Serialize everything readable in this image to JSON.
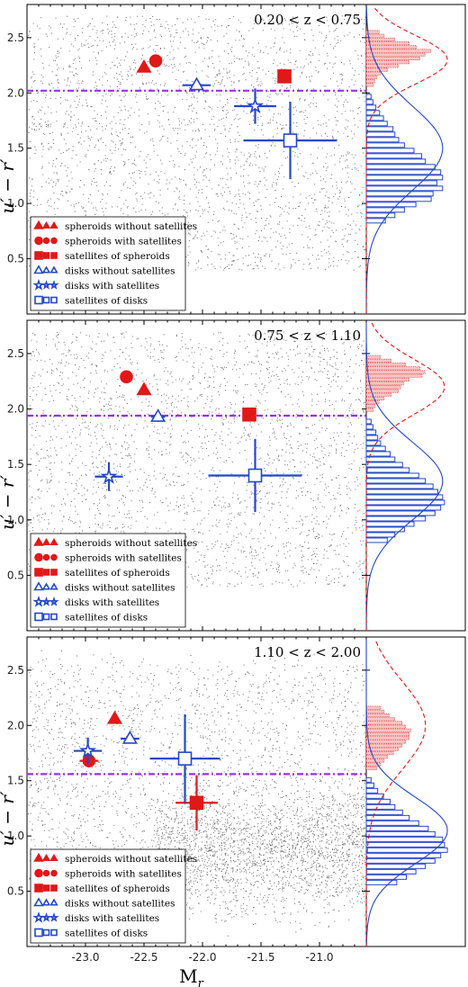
{
  "colors": {
    "red": "#e01818",
    "blue": "#2448c8",
    "threshold": "#9a2fe0",
    "scatter": "#6e6e6e"
  },
  "chart_data": [
    {
      "type": "scatter",
      "zlabel": "0.20 < z < 0.75",
      "ylabel": "u′ − r′",
      "xlim": [
        -23.5,
        -20.6
      ],
      "ylim": [
        0.0,
        2.8
      ],
      "yticks": [
        "0.5",
        "1.0",
        "1.5",
        "2.0",
        "2.5"
      ],
      "threshold": 2.02,
      "series": [
        {
          "name": "spheroids without satellites",
          "marker": "triangle",
          "color": "red",
          "x": -22.5,
          "y": 2.23,
          "xerr": 0,
          "yerr": 0
        },
        {
          "name": "spheroids with satellites",
          "marker": "circle",
          "color": "red",
          "x": -22.4,
          "y": 2.29,
          "xerr": 0,
          "yerr": 0
        },
        {
          "name": "satellites of spheroids",
          "marker": "square",
          "color": "red",
          "x": -21.3,
          "y": 2.15,
          "xerr": 0.05,
          "yerr": 0.05
        },
        {
          "name": "disks without satellites",
          "marker": "triangle-open",
          "color": "blue",
          "x": -22.05,
          "y": 2.07,
          "xerr": 0.12,
          "yerr": 0.04
        },
        {
          "name": "disks with satellites",
          "marker": "star-open",
          "color": "blue",
          "x": -21.55,
          "y": 1.88,
          "xerr": 0.18,
          "yerr": 0.16
        },
        {
          "name": "satellites of disks",
          "marker": "square-open",
          "color": "blue",
          "x": -21.25,
          "y": 1.57,
          "xerr": 0.4,
          "yerr": 0.35
        }
      ],
      "hist_red": [
        0.1,
        0.12,
        0.15,
        0.2,
        0.3,
        0.45,
        0.6,
        0.75,
        0.82,
        0.9,
        0.7,
        0.6,
        0.4,
        0.25,
        0.18
      ],
      "hist_blue": [
        0.05,
        0.07,
        0.1,
        0.14,
        0.18,
        0.22,
        0.28,
        0.3,
        0.34,
        0.4,
        0.5,
        0.58,
        0.62,
        0.72,
        0.78,
        0.8,
        0.74,
        0.8,
        0.7,
        0.68,
        0.52,
        0.4,
        0.3,
        0.2
      ],
      "red_fit": {
        "mu": 2.3,
        "sigma": 0.22,
        "peak": 0.85
      },
      "blue_fit": {
        "mu": 1.5,
        "sigma": 0.38,
        "peak": 0.8
      }
    },
    {
      "type": "scatter",
      "zlabel": "0.75 < z < 1.10",
      "ylabel": "u′ − r′",
      "xlim": [
        -23.5,
        -20.6
      ],
      "ylim": [
        0.0,
        2.8
      ],
      "yticks": [
        "0.5",
        "1.0",
        "1.5",
        "2.0",
        "2.5"
      ],
      "threshold": 1.94,
      "series": [
        {
          "name": "spheroids without satellites",
          "marker": "triangle",
          "color": "red",
          "x": -22.5,
          "y": 2.17,
          "xerr": 0,
          "yerr": 0
        },
        {
          "name": "spheroids with satellites",
          "marker": "circle",
          "color": "red",
          "x": -22.65,
          "y": 2.29,
          "xerr": 0,
          "yerr": 0
        },
        {
          "name": "satellites of spheroids",
          "marker": "square",
          "color": "red",
          "x": -21.6,
          "y": 1.95,
          "xerr": 0.05,
          "yerr": 0.04
        },
        {
          "name": "disks without satellites",
          "marker": "triangle-open",
          "color": "blue",
          "x": -22.38,
          "y": 1.93,
          "xerr": 0.06,
          "yerr": 0.04
        },
        {
          "name": "disks with satellites",
          "marker": "star-open",
          "color": "blue",
          "x": -22.8,
          "y": 1.39,
          "xerr": 0.12,
          "yerr": 0.13
        },
        {
          "name": "satellites of disks",
          "marker": "square-open",
          "color": "blue",
          "x": -21.55,
          "y": 1.4,
          "xerr": 0.4,
          "yerr": 0.33
        }
      ],
      "hist_red": [
        0.1,
        0.12,
        0.18,
        0.25,
        0.35,
        0.45,
        0.48,
        0.52,
        0.6,
        0.78,
        0.82,
        0.75,
        0.55,
        0.35,
        0.2
      ],
      "hist_blue": [
        0.05,
        0.07,
        0.1,
        0.12,
        0.15,
        0.2,
        0.25,
        0.3,
        0.38,
        0.45,
        0.55,
        0.62,
        0.7,
        0.75,
        0.8,
        0.82,
        0.78,
        0.72,
        0.62,
        0.5,
        0.4,
        0.3,
        0.22
      ],
      "red_fit": {
        "mu": 2.2,
        "sigma": 0.25,
        "peak": 0.82
      },
      "blue_fit": {
        "mu": 1.35,
        "sigma": 0.35,
        "peak": 0.8
      }
    },
    {
      "type": "scatter",
      "zlabel": "1.10 < z < 2.00",
      "ylabel": "u′ − r′",
      "xlabel": "M",
      "xlabel_sub": "r",
      "xlim": [
        -23.5,
        -20.6
      ],
      "ylim": [
        0.0,
        2.8
      ],
      "yticks": [
        "0.5",
        "1.0",
        "1.5",
        "2.0",
        "2.5"
      ],
      "xticks": [
        -23.0,
        -22.5,
        -22.0,
        -21.5,
        -21.0
      ],
      "xticklabels": [
        "-23.0",
        "-22.5",
        "-22.0",
        "-21.5",
        "-21.0"
      ],
      "threshold": 1.56,
      "series": [
        {
          "name": "spheroids without satellites",
          "marker": "triangle",
          "color": "red",
          "x": -22.75,
          "y": 2.06,
          "xerr": 0,
          "yerr": 0
        },
        {
          "name": "spheroids with satellites",
          "marker": "circle",
          "color": "red",
          "x": -22.97,
          "y": 1.68,
          "xerr": 0.08,
          "yerr": 0.06
        },
        {
          "name": "satellites of spheroids",
          "marker": "square",
          "color": "red",
          "x": -22.05,
          "y": 1.3,
          "xerr": 0.18,
          "yerr": 0.25
        },
        {
          "name": "disks without satellites",
          "marker": "triangle-open",
          "color": "blue",
          "x": -22.62,
          "y": 1.88,
          "xerr": 0.08,
          "yerr": 0.04
        },
        {
          "name": "disks with satellites",
          "marker": "star-open",
          "color": "blue",
          "x": -22.98,
          "y": 1.77,
          "xerr": 0.12,
          "yerr": 0.12
        },
        {
          "name": "satellites of disks",
          "marker": "square-open",
          "color": "blue",
          "x": -22.15,
          "y": 1.7,
          "xerr": 0.3,
          "yerr": 0.4
        }
      ],
      "hist_red": [
        0.15,
        0.2,
        0.25,
        0.3,
        0.38,
        0.45,
        0.5,
        0.55,
        0.6,
        0.6,
        0.62,
        0.55,
        0.5,
        0.4,
        0.32,
        0.25,
        0.2
      ],
      "hist_blue": [
        0.05,
        0.08,
        0.12,
        0.18,
        0.25,
        0.3,
        0.38,
        0.45,
        0.55,
        0.65,
        0.72,
        0.8,
        0.82,
        0.85,
        0.78,
        0.72,
        0.62,
        0.52,
        0.42,
        0.32
      ],
      "red_fit": {
        "mu": 2.0,
        "sigma": 0.4,
        "peak": 0.62
      },
      "blue_fit": {
        "mu": 1.05,
        "sigma": 0.3,
        "peak": 0.85
      }
    }
  ]
}
